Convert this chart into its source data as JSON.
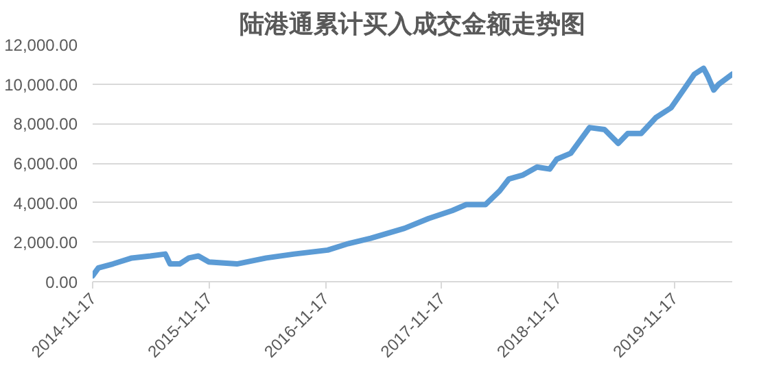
{
  "chart_data": {
    "type": "line",
    "title": "陆港通累计买入成交金额走势图",
    "x": [
      "2014-11-17",
      "2014-12-05",
      "2015-01-20",
      "2015-03-20",
      "2015-05-17",
      "2015-07-03",
      "2015-07-18",
      "2015-08-17",
      "2015-09-15",
      "2015-10-15",
      "2015-11-17",
      "2016-02-13",
      "2016-05-15",
      "2016-08-11",
      "2016-11-24",
      "2017-01-22",
      "2017-04-08",
      "2017-07-23",
      "2017-10-07",
      "2017-12-20",
      "2018-02-02",
      "2018-04-03",
      "2018-05-18",
      "2018-06-16",
      "2018-07-30",
      "2018-09-12",
      "2018-10-22",
      "2018-11-13",
      "2018-12-27",
      "2019-02-24",
      "2019-04-12",
      "2019-05-25",
      "2019-06-24",
      "2019-08-05",
      "2019-09-20",
      "2019-11-07",
      "2019-12-20",
      "2020-01-19",
      "2020-02-17",
      "2020-03-01",
      "2020-03-20",
      "2020-04-05",
      "2020-05-17"
    ],
    "series": [
      {
        "color": "#5b9bd5",
        "values": [
          300,
          700,
          900,
          1200,
          1300,
          1400,
          900,
          900,
          1200,
          1300,
          1000,
          900,
          1200,
          1400,
          1600,
          1900,
          2200,
          2700,
          3200,
          3600,
          3900,
          3900,
          4600,
          5200,
          5400,
          5800,
          5700,
          6200,
          6500,
          7800,
          7700,
          7000,
          7500,
          7500,
          8300,
          8800,
          9800,
          10500,
          10800,
          10400,
          9700,
          10000,
          10500
        ]
      }
    ],
    "xlim": [
      "2014-11-17",
      "2020-05-17"
    ],
    "xticks": [
      "2014-11-17",
      "2015-11-17",
      "2016-11-17",
      "2017-11-17",
      "2018-11-17",
      "2019-11-17"
    ],
    "ylim": [
      0,
      12000
    ],
    "yticks": [
      {
        "value": 0,
        "label": "0.00"
      },
      {
        "value": 2000,
        "label": "2,000.00"
      },
      {
        "value": 4000,
        "label": "4,000.00"
      },
      {
        "value": 6000,
        "label": "6,000.00"
      },
      {
        "value": 8000,
        "label": "8,000.00"
      },
      {
        "value": 10000,
        "label": "10,000.00"
      },
      {
        "value": 12000,
        "label": "12,000.00"
      }
    ],
    "grid": "y",
    "line_style": "solid"
  }
}
